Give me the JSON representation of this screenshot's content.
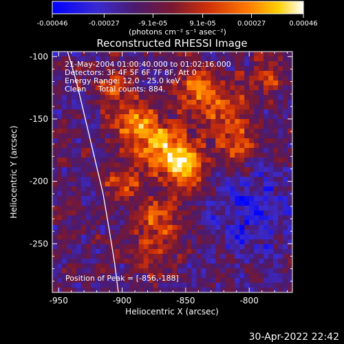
{
  "chart_data": {
    "type": "heatmap",
    "title": "Reconstructed RHESSI Image",
    "xlabel": "Heliocentric X (arcsec)",
    "ylabel": "Heliocentric Y (arcsec)",
    "xlim": [
      -955,
      -766
    ],
    "ylim": [
      -289,
      -96
    ],
    "x_ticks": [
      -950,
      -900,
      -850,
      -800
    ],
    "y_ticks": [
      -250,
      -200,
      -150,
      -100
    ],
    "x_tick_labels": [
      "-950",
      "-900",
      "-850",
      "-800"
    ],
    "y_tick_labels": [
      "-250",
      "-200",
      "-150",
      "-100"
    ],
    "colorbar": {
      "min": -0.00046,
      "max": 0.00046,
      "ticks": [
        -0.00046,
        -0.00027,
        -9.1e-05,
        9.1e-05,
        0.00027,
        0.00046
      ],
      "tick_labels": [
        "-0.00046",
        "-0.00027",
        "-9.1e-05",
        "9.1e-05",
        "0.00027",
        "0.00046"
      ],
      "unit_text": "(photons cm⁻² s⁻¹ asec⁻²)",
      "colors": [
        "#0000ff",
        "#5a3ca0",
        "#4b1a6e",
        "#b01e0a",
        "#ff5a00",
        "#ffc800",
        "#ffffff"
      ]
    },
    "annotations": [
      "21-May-2004 01:00:40.000 to 01:02:16.000",
      "Detectors: 3F 4F 5F 6F 7F 8F, Att 0",
      "Energy Range: 12.0 - 25.0 keV",
      "Clean     Total counts: 884."
    ],
    "peak_text": "Position of Peak = [-856,-188]",
    "limb_curve_x": [
      -943,
      -936,
      -929,
      -922,
      -915,
      -910,
      -906,
      -903
    ],
    "limb_curve_y": [
      -96,
      -120,
      -150,
      -180,
      -210,
      -240,
      -265,
      -289
    ],
    "grid": false
  },
  "footer": {
    "timestamp": "30-Apr-2022 22:42"
  }
}
